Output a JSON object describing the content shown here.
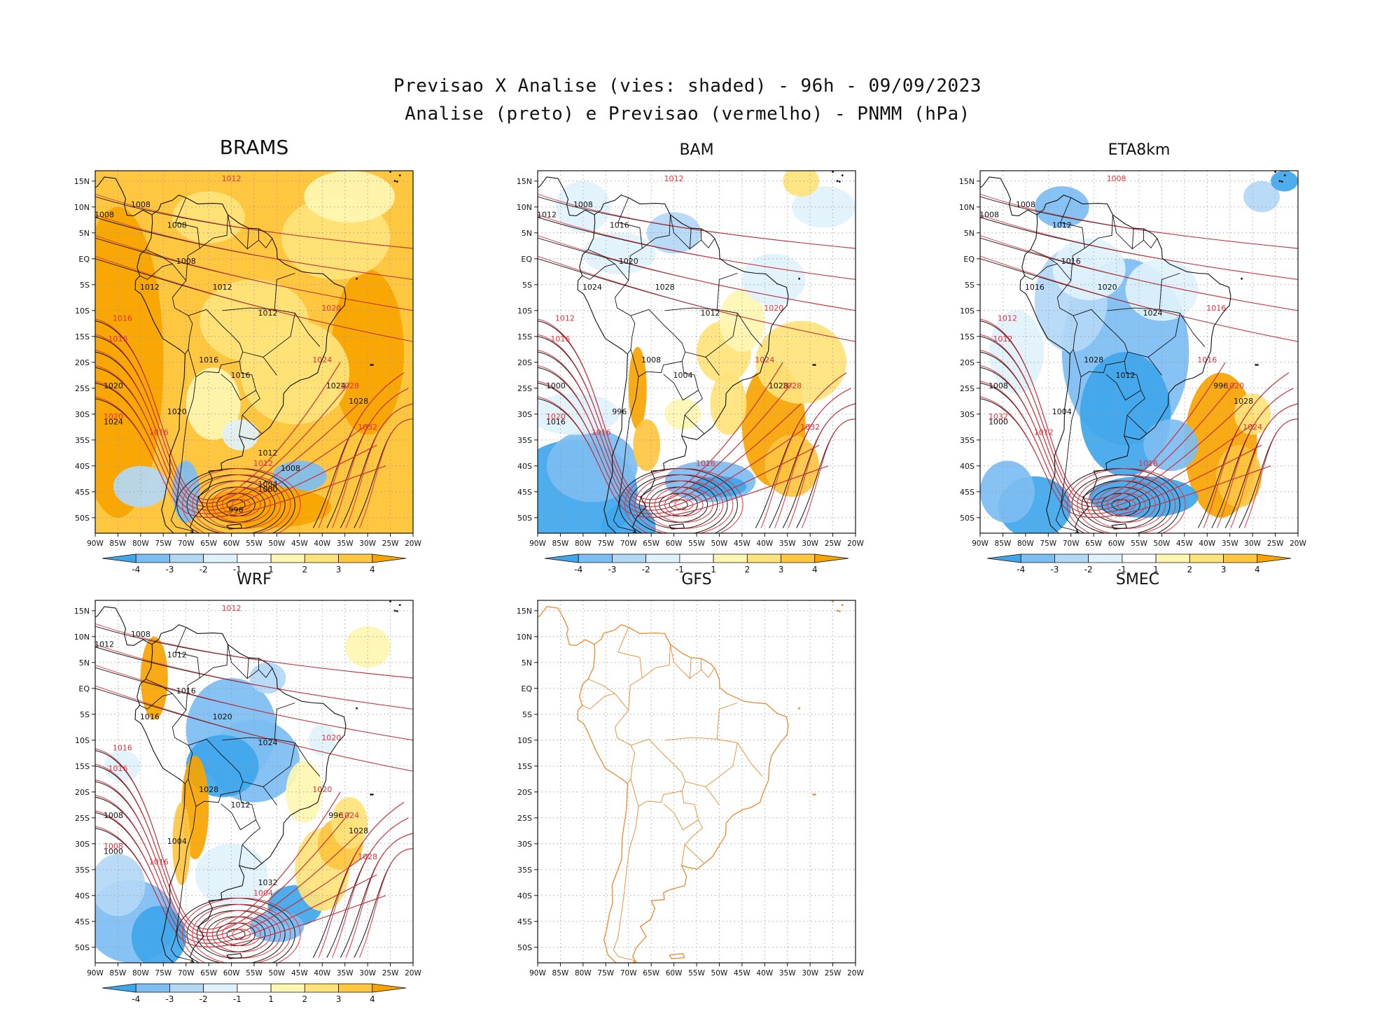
{
  "header": {
    "line1": "Previsao X Analise (vies: shaded) - 96h - 09/09/2023",
    "line2": "Analise (preto) e Previsao (vermelho) - PNMM (hPa)"
  },
  "lat_ticks": [
    "15N",
    "10N",
    "5N",
    "EQ",
    "5S",
    "10S",
    "15S",
    "20S",
    "25S",
    "30S",
    "35S",
    "40S",
    "45S",
    "50S"
  ],
  "lon_ticks": [
    "90W",
    "85W",
    "80W",
    "75W",
    "70W",
    "65W",
    "60W",
    "55W",
    "50W",
    "45W",
    "40W",
    "35W",
    "30W",
    "25W",
    "20W"
  ],
  "colorbar": {
    "labels": [
      "-4",
      "-3",
      "-2",
      "-1",
      "1",
      "2",
      "3",
      "4"
    ],
    "colors": [
      "#3fa6ec",
      "#7cbdf2",
      "#b3d8f6",
      "#dff2fb",
      "#ffffff",
      "#fff6b2",
      "#ffe37a",
      "#ffc640",
      "#f7a400"
    ]
  },
  "colors": {
    "analysis_contour": "#111111",
    "forecast_contour": "#e8303a",
    "coastline_gfs": "#e88a2e"
  },
  "panels": [
    {
      "id": "brams",
      "title": "BRAMS",
      "bias": "warm",
      "labels_black": [
        "1008",
        "1008",
        "1008",
        "1008",
        "1012",
        "1012",
        "1012",
        "1016",
        "1016",
        "1020",
        "1020",
        "1024",
        "1024",
        "1028",
        "1012",
        "1008",
        "1004",
        "1000",
        "996"
      ],
      "labels_red": [
        "1012",
        "1016",
        "1016",
        "1020",
        "1024",
        "1028",
        "1032",
        "1020",
        "1016",
        "1012"
      ]
    },
    {
      "id": "bam",
      "title": "BAM",
      "bias": "mixed",
      "labels_black": [
        "1008",
        "1012",
        "1016",
        "1020",
        "1024",
        "1028",
        "1012",
        "1008",
        "1004",
        "1000",
        "996",
        "1016",
        "1028"
      ],
      "labels_red": [
        "1012",
        "1012",
        "1016",
        "1020",
        "1024",
        "1028",
        "1032",
        "1020",
        "1016",
        "1016"
      ]
    },
    {
      "id": "eta",
      "title": "ETA8km",
      "bias": "cool",
      "labels_black": [
        "1008",
        "1008",
        "1012",
        "1016",
        "1016",
        "1020",
        "1024",
        "1028",
        "1012",
        "1008",
        "1004",
        "1000",
        "996",
        "1028"
      ],
      "labels_red": [
        "1008",
        "1012",
        "1012",
        "1016",
        "1016",
        "1020",
        "1024",
        "1032",
        "1012",
        "1016"
      ]
    },
    {
      "id": "wrf",
      "title": "WRF",
      "bias": "cool2",
      "labels_black": [
        "1008",
        "1012",
        "1012",
        "1016",
        "1016",
        "1020",
        "1024",
        "1028",
        "1012",
        "1008",
        "1004",
        "1000",
        "996",
        "1028",
        "1032"
      ],
      "labels_red": [
        "1012",
        "1016",
        "1016",
        "1020",
        "1020",
        "1024",
        "1028",
        "1008",
        "1016",
        "1004"
      ]
    },
    {
      "id": "gfs",
      "title": "GFS",
      "bias": "none",
      "labels_black": [],
      "labels_red": []
    }
  ],
  "empty_panel_title": "SMEC"
}
